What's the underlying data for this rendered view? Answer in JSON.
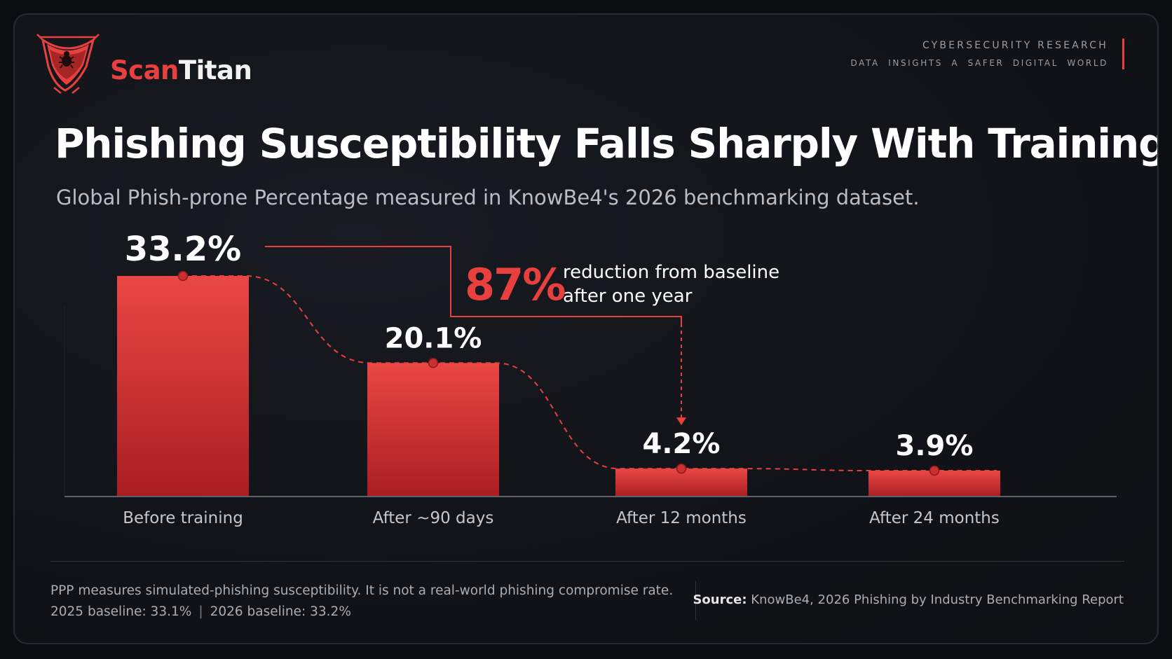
{
  "brand": {
    "name_part1": "Scan",
    "name_part2": "Titan",
    "kicker_line1": "CYBERSECURITY RESEARCH",
    "kicker_line2": "DATA  INSIGHTS  A SAFER DIGITAL WORLD",
    "accent": "#e8403f",
    "icon": "shield-bug-icon"
  },
  "chart_data": {
    "type": "bar",
    "title": "Phishing Susceptibility Falls Sharply With Training",
    "subtitle": "Global Phish-prone Percentage measured in KnowBe4's 2026 benchmarking dataset.",
    "categories": [
      "Before training",
      "After ~90 days",
      "After 12 months",
      "After 24 months"
    ],
    "values": [
      33.2,
      20.1,
      4.2,
      3.9
    ],
    "data_labels": [
      "33.2%",
      "20.1%",
      "4.2%",
      "3.9%"
    ],
    "ylim": [
      0,
      33.2
    ],
    "grid": false,
    "bar_color": "#e8403f",
    "annotation": {
      "value": "87%",
      "line1": "reduction from baseline",
      "line2": "after one year",
      "from_category": "Before training",
      "to_category": "After 12 months"
    }
  },
  "footer": {
    "note_line1": "PPP measures simulated-phishing susceptibility. It is not a real-world phishing compromise rate.",
    "baseline_2025": "2025 baseline: 33.1%",
    "separator": "|",
    "baseline_2026": "2026 baseline: 33.2%",
    "source_label": "Source:",
    "source_text": "KnowBe4, 2026 Phishing by Industry Benchmarking Report"
  }
}
